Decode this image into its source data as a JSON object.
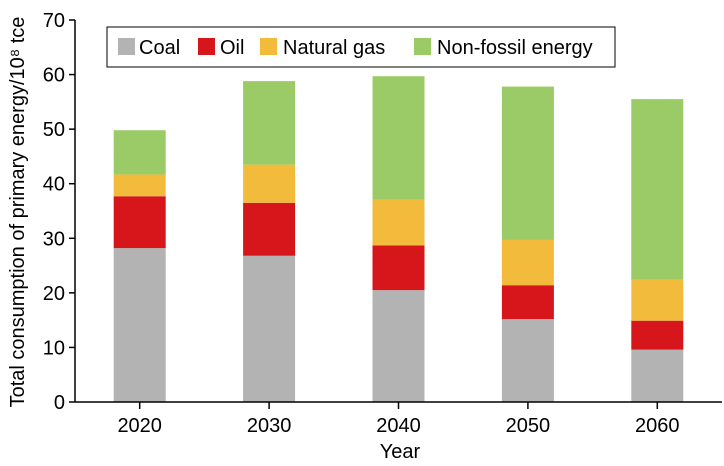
{
  "chart_data": {
    "type": "bar",
    "stacked": true,
    "categories": [
      "2020",
      "2030",
      "2040",
      "2050",
      "2060"
    ],
    "series": [
      {
        "name": "Coal",
        "color": "#b3b3b3",
        "values": [
          28.2,
          26.8,
          20.5,
          15.2,
          9.6
        ]
      },
      {
        "name": "Oil",
        "color": "#d7161b",
        "values": [
          9.5,
          9.7,
          8.2,
          6.2,
          5.3
        ]
      },
      {
        "name": "Natural gas",
        "color": "#f2bb3c",
        "values": [
          4.0,
          7.0,
          8.5,
          8.3,
          7.5
        ]
      },
      {
        "name": "Non-fossil energy",
        "color": "#9bcb66",
        "values": [
          8.1,
          15.3,
          22.5,
          28.1,
          33.1
        ]
      }
    ],
    "xlabel": "Year",
    "ylabel": "Total consumption of primary energy/10⁸ tce",
    "ylim": [
      0,
      70
    ],
    "yticks": [
      0,
      10,
      20,
      30,
      40,
      50,
      60,
      70
    ],
    "legend_position": "top",
    "grid": false
  }
}
